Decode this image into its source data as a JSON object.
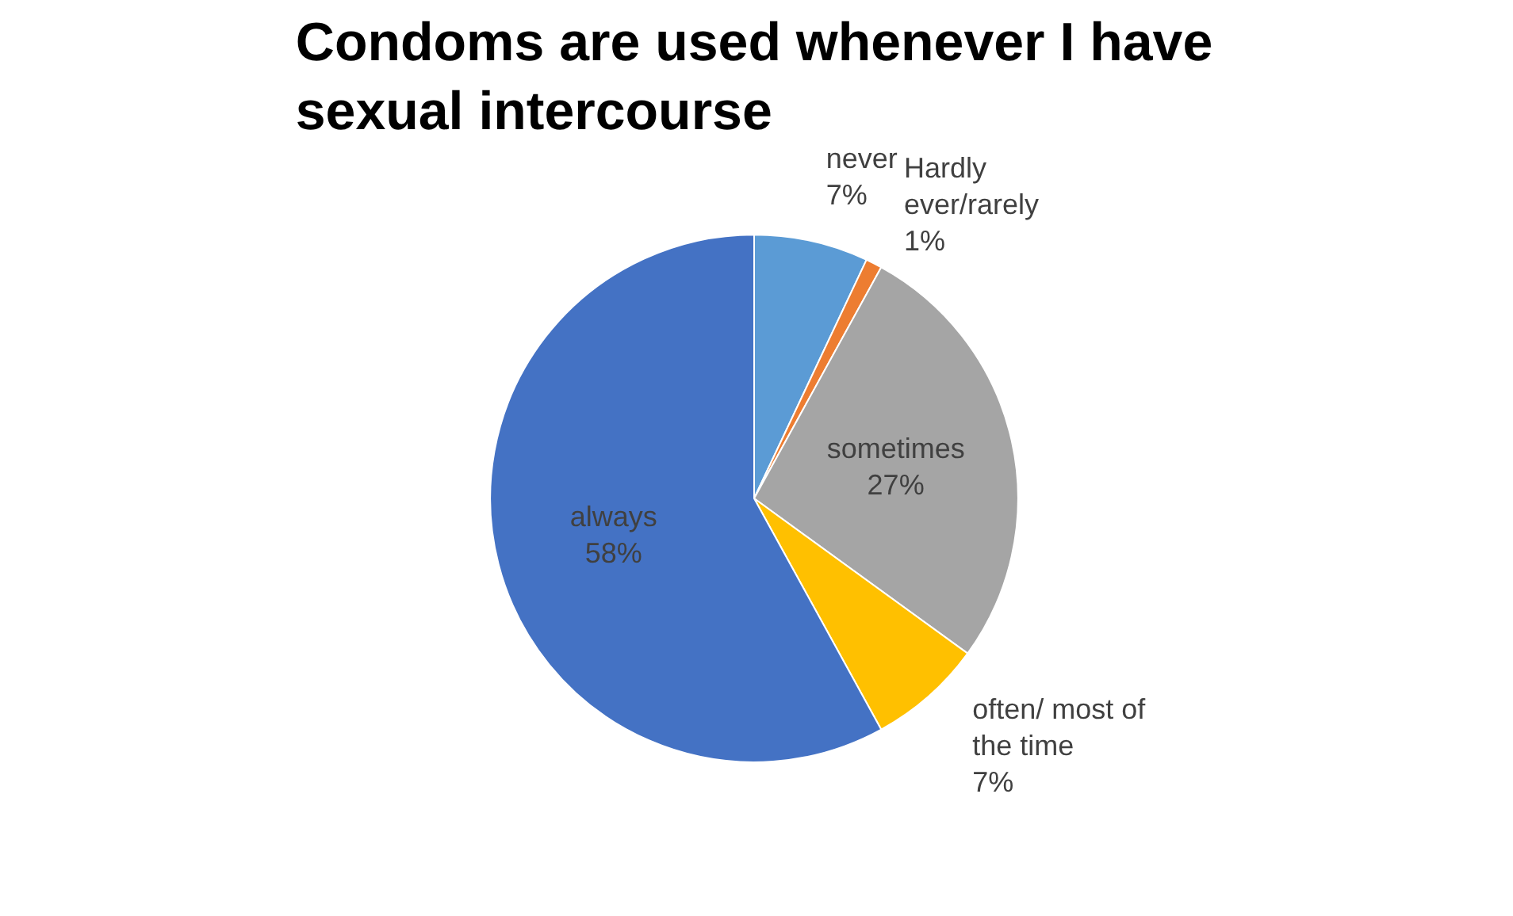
{
  "chart_data": {
    "type": "pie",
    "title": "Condoms are used whenever I have sexual intercourse",
    "categories": [
      "never",
      "Hardly ever/rarely",
      "sometimes",
      "often/ most of the time",
      "always"
    ],
    "values": [
      7,
      1,
      27,
      7,
      58
    ],
    "colors": [
      "#5b9bd5",
      "#ed7d31",
      "#a5a5a5",
      "#ffc000",
      "#4472c4"
    ],
    "value_labels": [
      "7%",
      "1%",
      "27%",
      "7%",
      "58%"
    ]
  }
}
